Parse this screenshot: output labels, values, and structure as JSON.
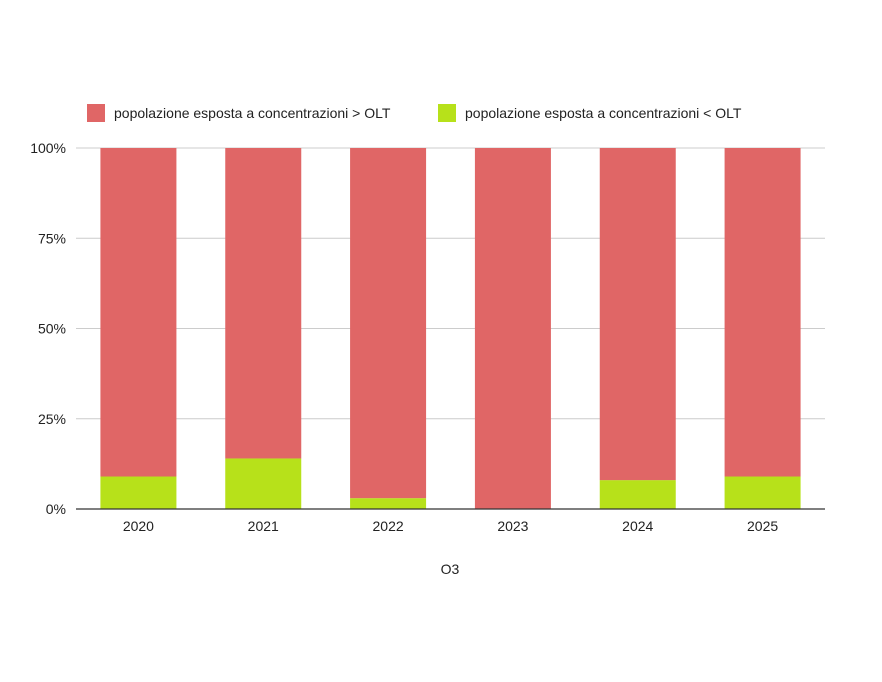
{
  "chart_data": {
    "type": "bar",
    "stacked": true,
    "normalized": true,
    "categories": [
      "2020",
      "2021",
      "2022",
      "2023",
      "2024",
      "2025"
    ],
    "series": [
      {
        "name": "popolazione esposta a concentrazioni < OLT",
        "color": "#b7e11a",
        "values": [
          9,
          14,
          3,
          0,
          8,
          9
        ]
      },
      {
        "name": "popolazione esposta a concentrazioni > OLT",
        "color": "#e06666",
        "values": [
          91,
          86,
          97,
          100,
          92,
          91
        ]
      }
    ],
    "legend_order": [
      1,
      0
    ],
    "legend_position": "top-left",
    "yticks": [
      "0%",
      "25%",
      "50%",
      "75%",
      "100%"
    ],
    "ylim": [
      0,
      100
    ],
    "xlabel": "O3",
    "ylabel": "",
    "grid": true,
    "gridline_color": "#cccccc"
  }
}
